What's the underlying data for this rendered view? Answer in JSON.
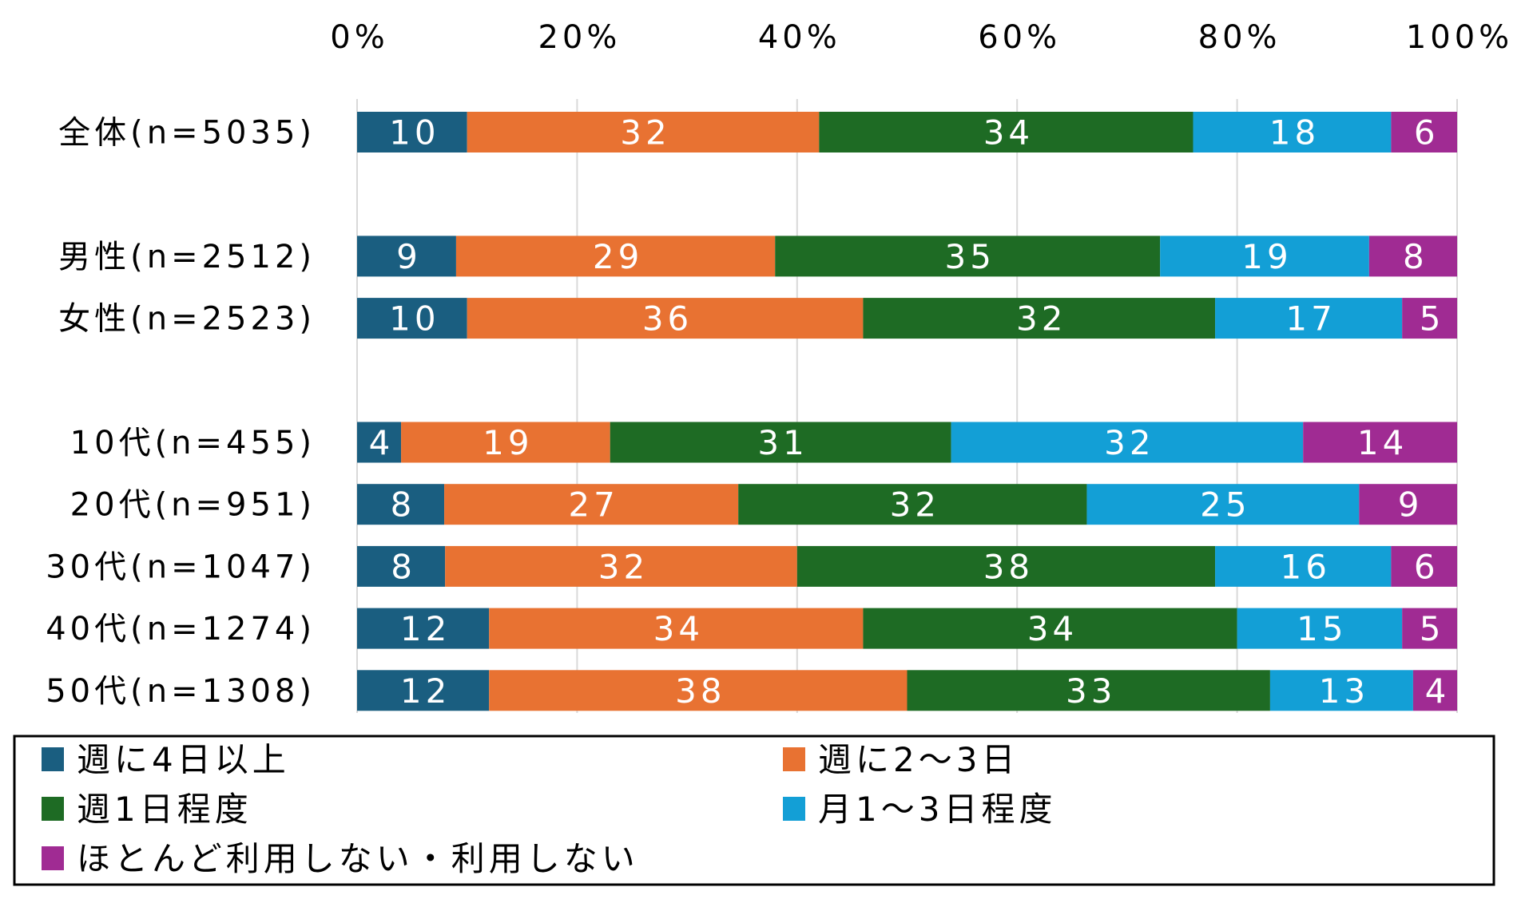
{
  "chart_data": {
    "type": "bar",
    "orientation": "horizontal",
    "stacked": true,
    "percent": true,
    "xlim": [
      0,
      100
    ],
    "x_ticks": [
      "0%",
      "20%",
      "40%",
      "60%",
      "80%",
      "100%"
    ],
    "grid": true,
    "legend_position": "bottom",
    "categories": [
      "全体(n=5035)",
      "男性(n=2512)",
      "女性(n=2523)",
      "10代(n=455)",
      "20代(n=951)",
      "30代(n=1047)",
      "40代(n=1274)",
      "50代(n=1308)"
    ],
    "category_slots": [
      0,
      2,
      3,
      5,
      6,
      7,
      8,
      9
    ],
    "series": [
      {
        "name": "週に4日以上",
        "color": "#1a5e80",
        "values": [
          10,
          9,
          10,
          4,
          8,
          8,
          12,
          12
        ]
      },
      {
        "name": "週に2〜3日",
        "color": "#e87232",
        "values": [
          32,
          29,
          36,
          19,
          27,
          32,
          34,
          38
        ]
      },
      {
        "name": "週1日程度",
        "color": "#1e6b24",
        "values": [
          34,
          35,
          32,
          31,
          32,
          38,
          34,
          33
        ]
      },
      {
        "name": "月1〜3日程度",
        "color": "#139fd6",
        "values": [
          18,
          19,
          17,
          32,
          25,
          16,
          15,
          13
        ]
      },
      {
        "name": "ほとんど利用しない・利用しない",
        "color": "#a02b93",
        "values": [
          6,
          8,
          5,
          14,
          9,
          6,
          5,
          4
        ]
      }
    ]
  }
}
